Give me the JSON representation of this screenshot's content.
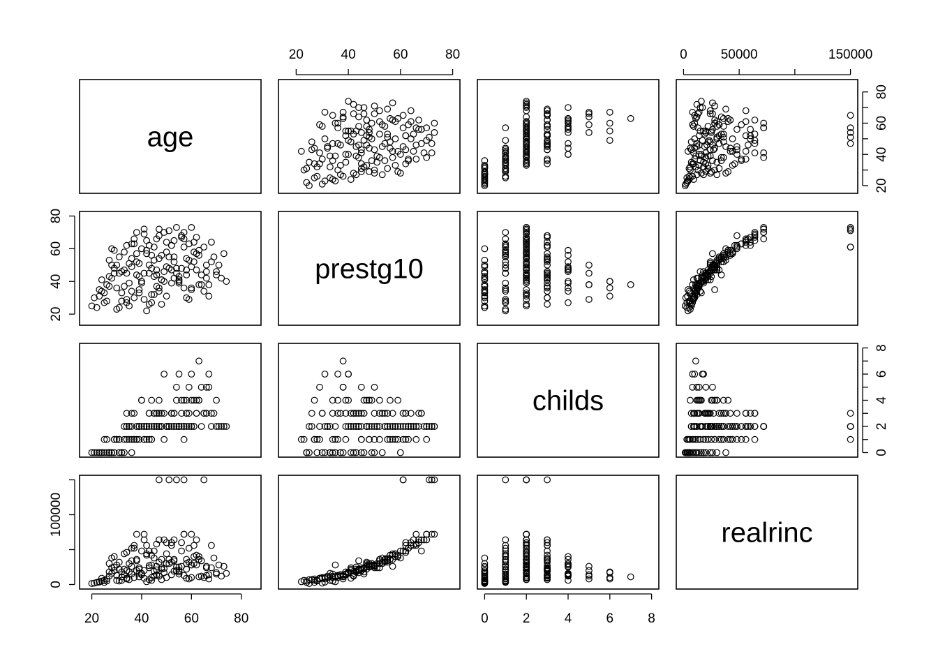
{
  "chart_data": {
    "type": "scatter",
    "subtype": "scatterplot-matrix",
    "variables": [
      {
        "name": "age",
        "range": [
          18,
          85
        ],
        "ticks": [
          20,
          40,
          60,
          80
        ],
        "tick_labels": [
          "20",
          "40",
          "60",
          "80"
        ]
      },
      {
        "name": "prestg10",
        "range": [
          16,
          80
        ],
        "ticks": [
          20,
          40,
          60,
          80
        ],
        "tick_labels": [
          "20",
          "40",
          "60",
          "80"
        ]
      },
      {
        "name": "childs",
        "range": [
          0,
          8
        ],
        "ticks": [
          0,
          2,
          4,
          6,
          8
        ],
        "tick_labels": [
          "0",
          "2",
          "4",
          "6",
          "8"
        ]
      },
      {
        "name": "realrinc",
        "range": [
          0,
          150000
        ],
        "ticks": [
          0,
          50000,
          100000,
          150000
        ],
        "tick_labels": [
          "0",
          "50000",
          "100000",
          "150000"
        ]
      }
    ],
    "axes": {
      "bottom": [
        {
          "col": 0,
          "ticks": [
            20,
            40,
            60,
            80
          ],
          "tick_labels": [
            "20",
            "40",
            "60",
            "80"
          ]
        },
        {
          "col": 2,
          "ticks": [
            0,
            2,
            4,
            6,
            8
          ],
          "tick_labels": [
            "0",
            "2",
            "4",
            "6",
            "8"
          ]
        }
      ],
      "top": [
        {
          "col": 1,
          "ticks": [
            20,
            40,
            60,
            80
          ],
          "tick_labels": [
            "20",
            "40",
            "60",
            "80"
          ]
        },
        {
          "col": 3,
          "ticks": [
            0,
            50000,
            100000,
            150000
          ],
          "tick_labels": [
            "0",
            "50000",
            "",
            "150000"
          ]
        }
      ],
      "left": [
        {
          "row": 1,
          "ticks": [
            20,
            40,
            60,
            80
          ],
          "tick_labels": [
            "20",
            "40",
            "60",
            "80"
          ]
        },
        {
          "row": 3,
          "ticks": [
            0,
            50000,
            100000,
            150000
          ],
          "tick_labels": [
            "0",
            "",
            "100000",
            ""
          ]
        }
      ],
      "right": [
        {
          "row": 0,
          "ticks": [
            20,
            30,
            40,
            50,
            60,
            70,
            80
          ],
          "tick_labels": [
            "20",
            "",
            "40",
            "",
            "60",
            "",
            "80"
          ]
        },
        {
          "row": 2,
          "ticks": [
            0,
            1,
            2,
            3,
            4,
            5,
            6,
            7,
            8
          ],
          "tick_labels": [
            "0",
            "",
            "2",
            "",
            "4",
            "",
            "6",
            "",
            "8"
          ]
        }
      ]
    },
    "observations": [
      [
        43,
        45,
        2,
        24000
      ],
      [
        56,
        68,
        3,
        48000
      ],
      [
        34,
        27,
        1,
        8000
      ],
      [
        61,
        52,
        4,
        30000
      ],
      [
        27,
        37,
        0,
        12000
      ],
      [
        48,
        56,
        2,
        36000
      ],
      [
        39,
        33,
        2,
        16000
      ],
      [
        52,
        62,
        3,
        56000
      ],
      [
        29,
        45,
        0,
        20000
      ],
      [
        44,
        48,
        1,
        28000
      ],
      [
        67,
        38,
        5,
        14000
      ],
      [
        31,
        55,
        1,
        32000
      ],
      [
        58,
        44,
        3,
        22000
      ],
      [
        22,
        24,
        0,
        3000
      ],
      [
        50,
        64,
        2,
        60000
      ],
      [
        37,
        30,
        3,
        10000
      ],
      [
        46,
        47,
        2,
        26000
      ],
      [
        63,
        59,
        4,
        40000
      ],
      [
        25,
        33,
        0,
        6000
      ],
      [
        41,
        72,
        2,
        72000
      ],
      [
        55,
        40,
        6,
        18000
      ],
      [
        33,
        58,
        1,
        44000
      ],
      [
        70,
        46,
        4,
        15000
      ],
      [
        47,
        36,
        3,
        12000
      ],
      [
        36,
        63,
        2,
        52000
      ],
      [
        59,
        29,
        5,
        8000
      ],
      [
        28,
        50,
        0,
        24000
      ],
      [
        53,
        55,
        2,
        34000
      ],
      [
        42,
        22,
        1,
        4000
      ],
      [
        65,
        61,
        3,
        150000
      ],
      [
        38,
        44,
        2,
        20000
      ],
      [
        49,
        70,
        1,
        64000
      ],
      [
        60,
        35,
        2,
        28000
      ],
      [
        26,
        28,
        1,
        5000
      ],
      [
        45,
        53,
        3,
        38000
      ],
      [
        72,
        42,
        2,
        12000
      ],
      [
        32,
        46,
        0,
        18000
      ],
      [
        57,
        66,
        2,
        72000
      ],
      [
        40,
        39,
        4,
        14000
      ],
      [
        51,
        48,
        2,
        30000
      ],
      [
        24,
        41,
        0,
        9000
      ],
      [
        62,
        57,
        3,
        42000
      ],
      [
        35,
        25,
        2,
        7000
      ],
      [
        54,
        73,
        2,
        150000
      ],
      [
        30,
        36,
        1,
        13000
      ],
      [
        66,
        50,
        5,
        26000
      ],
      [
        43,
        62,
        1,
        48000
      ],
      [
        21,
        30,
        0,
        2000
      ],
      [
        48,
        41,
        3,
        22000
      ],
      [
        58,
        54,
        2,
        36000
      ],
      [
        36,
        34,
        1,
        15000
      ],
      [
        68,
        64,
        3,
        56000
      ],
      [
        44,
        27,
        4,
        6000
      ],
      [
        52,
        47,
        2,
        32000
      ],
      [
        29,
        59,
        1,
        40000
      ],
      [
        63,
        38,
        7,
        11000
      ],
      [
        39,
        51,
        2,
        24000
      ],
      [
        47,
        68,
        3,
        64000
      ],
      [
        55,
        43,
        2,
        25000
      ],
      [
        31,
        24,
        0,
        5000
      ],
      [
        60,
        49,
        4,
        28000
      ],
      [
        42,
        57,
        2,
        44000
      ],
      [
        74,
        40,
        2,
        16000
      ],
      [
        34,
        45,
        3,
        20000
      ],
      [
        50,
        31,
        2,
        10000
      ],
      [
        27,
        53,
        0,
        30000
      ],
      [
        57,
        61,
        1,
        150000
      ],
      [
        46,
        37,
        3,
        14000
      ],
      [
        38,
        70,
        2,
        72000
      ],
      [
        64,
        44,
        2,
        34000
      ],
      [
        23,
        35,
        0,
        4000
      ],
      [
        53,
        52,
        3,
        36000
      ],
      [
        41,
        29,
        1,
        9000
      ],
      [
        59,
        63,
        2,
        52000
      ],
      [
        33,
        47,
        2,
        22000
      ],
      [
        49,
        40,
        6,
        17000
      ],
      [
        69,
        55,
        3,
        38000
      ],
      [
        37,
        66,
        1,
        56000
      ],
      [
        45,
        32,
        2,
        12000
      ],
      [
        56,
        48,
        4,
        26000
      ],
      [
        28,
        42,
        0,
        16000
      ],
      [
        61,
        58,
        2,
        40000
      ],
      [
        43,
        26,
        3,
        7000
      ],
      [
        51,
        71,
        2,
        150000
      ],
      [
        35,
        39,
        1,
        18000
      ],
      [
        66,
        46,
        3,
        24000
      ],
      [
        40,
        60,
        2,
        48000
      ],
      [
        25,
        27,
        1,
        3000
      ],
      [
        54,
        45,
        5,
        20000
      ],
      [
        47,
        54,
        2,
        32000
      ],
      [
        32,
        33,
        0,
        11000
      ],
      [
        62,
        67,
        3,
        64000
      ],
      [
        39,
        43,
        2,
        22000
      ],
      [
        57,
        36,
        4,
        13000
      ],
      [
        44,
        56,
        1,
        42000
      ],
      [
        71,
        50,
        2,
        28000
      ],
      [
        30,
        23,
        1,
        6000
      ],
      [
        52,
        62,
        3,
        60000
      ],
      [
        48,
        41,
        2,
        24000
      ],
      [
        36,
        49,
        0,
        26000
      ],
      [
        65,
        34,
        3,
        10000
      ],
      [
        42,
        65,
        2,
        56000
      ],
      [
        58,
        47,
        4,
        30000
      ],
      [
        26,
        38,
        0,
        8000
      ],
      [
        50,
        58,
        2,
        44000
      ],
      [
        34,
        29,
        2,
        9000
      ],
      [
        60,
        73,
        2,
        72000
      ],
      [
        46,
        44,
        3,
        21000
      ],
      [
        38,
        52,
        1,
        34000
      ],
      [
        55,
        39,
        2,
        15000
      ],
      [
        20,
        25,
        0,
        1500
      ],
      [
        63,
        56,
        4,
        36000
      ],
      [
        41,
        69,
        2,
        64000
      ],
      [
        53,
        42,
        3,
        19000
      ],
      [
        29,
        48,
        1,
        25000
      ],
      [
        67,
        31,
        6,
        8000
      ],
      [
        45,
        61,
        2,
        48000
      ],
      [
        33,
        37,
        0,
        14000
      ],
      [
        59,
        53,
        3,
        32000
      ],
      [
        48,
        26,
        2,
        7000
      ],
      [
        37,
        63,
        1,
        52000
      ],
      [
        70,
        44,
        2,
        17000
      ],
      [
        43,
        50,
        3,
        27000
      ],
      [
        24,
        34,
        0,
        5000
      ],
      [
        56,
        67,
        2,
        60000
      ],
      [
        40,
        40,
        4,
        16000
      ],
      [
        51,
        55,
        2,
        36000
      ],
      [
        31,
        45,
        1,
        22000
      ],
      [
        64,
        38,
        5,
        12000
      ],
      [
        47,
        72,
        2,
        150000
      ],
      [
        35,
        51,
        2,
        30000
      ],
      [
        58,
        30,
        3,
        9000
      ],
      [
        42,
        59,
        2,
        42000
      ],
      [
        27,
        43,
        0,
        18000
      ],
      [
        54,
        48,
        4,
        25000
      ],
      [
        61,
        64,
        2,
        56000
      ],
      [
        39,
        35,
        1,
        11000
      ],
      [
        49,
        46,
        3,
        23000
      ],
      [
        73,
        57,
        2,
        26000
      ],
      [
        32,
        28,
        0,
        6000
      ],
      [
        46,
        66,
        2,
        58000
      ],
      [
        55,
        41,
        2,
        20000
      ],
      [
        36,
        54,
        3,
        34000
      ],
      [
        62,
        47,
        4,
        28000
      ],
      [
        44,
        32,
        2,
        10000
      ],
      [
        28,
        60,
        0,
        38000
      ],
      [
        52,
        39,
        3,
        14000
      ],
      [
        68,
        52,
        2,
        24000
      ],
      [
        41,
        45,
        1,
        20000
      ],
      [
        57,
        70,
        2,
        72000
      ],
      [
        23,
        31,
        0,
        3500
      ],
      [
        50,
        49,
        2,
        30000
      ],
      [
        34,
        62,
        2,
        46000
      ],
      [
        60,
        36,
        6,
        10000
      ],
      [
        45,
        43,
        3,
        19000
      ],
      [
        38,
        57,
        1,
        36000
      ],
      [
        66,
        42,
        3,
        13000
      ],
      [
        30,
        50,
        1,
        28000
      ],
      [
        53,
        65,
        2,
        64000
      ],
      [
        47,
        34,
        4,
        12000
      ]
    ]
  }
}
